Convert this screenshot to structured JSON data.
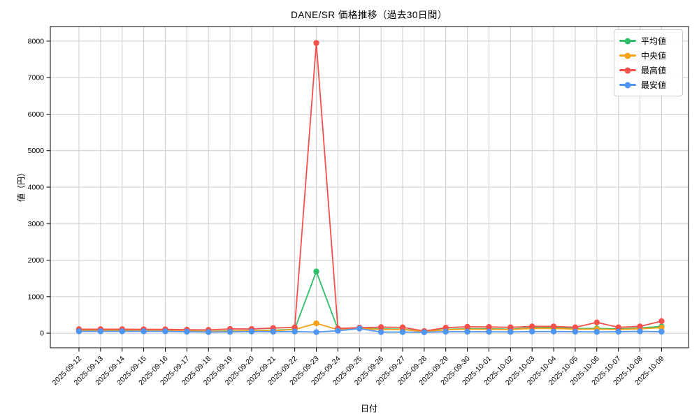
{
  "chart_data": {
    "type": "line",
    "title": "DANE/SR 価格推移（過去30日間）",
    "xlabel": "日付",
    "ylabel": "値（円）",
    "grid": true,
    "legend_position": "top-right",
    "ylim": [
      -400,
      8400
    ],
    "yticks": [
      0,
      1000,
      2000,
      3000,
      4000,
      5000,
      6000,
      7000,
      8000
    ],
    "categories": [
      "2025-09-12",
      "2025-09-13",
      "2025-09-14",
      "2025-09-15",
      "2025-09-16",
      "2025-09-17",
      "2025-09-18",
      "2025-09-19",
      "2025-09-20",
      "2025-09-21",
      "2025-09-22",
      "2025-09-23",
      "2025-09-24",
      "2025-09-25",
      "2025-09-26",
      "2025-09-27",
      "2025-09-28",
      "2025-09-29",
      "2025-09-30",
      "2025-10-01",
      "2025-10-02",
      "2025-10-03",
      "2025-10-04",
      "2025-10-05",
      "2025-10-06",
      "2025-10-07",
      "2025-10-08",
      "2025-10-09"
    ],
    "series": [
      {
        "name": "平均値",
        "color": "#2fbe69",
        "values": [
          80,
          80,
          80,
          75,
          75,
          65,
          55,
          60,
          70,
          80,
          110,
          1690,
          110,
          135,
          115,
          110,
          45,
          105,
          120,
          120,
          110,
          150,
          160,
          125,
          130,
          115,
          140,
          185
        ]
      },
      {
        "name": "中央値",
        "color": "#f7a219",
        "values": [
          75,
          75,
          75,
          70,
          70,
          60,
          50,
          55,
          65,
          70,
          100,
          270,
          95,
          130,
          100,
          100,
          40,
          95,
          110,
          105,
          100,
          130,
          130,
          110,
          110,
          100,
          120,
          150
        ]
      },
      {
        "name": "最高値",
        "color": "#f4514c",
        "values": [
          110,
          110,
          110,
          105,
          105,
          95,
          90,
          115,
          115,
          140,
          160,
          7950,
          130,
          150,
          165,
          160,
          60,
          150,
          175,
          170,
          160,
          185,
          185,
          160,
          295,
          160,
          185,
          330
        ]
      },
      {
        "name": "最安値",
        "color": "#4f96f2",
        "values": [
          50,
          50,
          50,
          50,
          50,
          40,
          30,
          35,
          45,
          40,
          45,
          30,
          65,
          125,
          30,
          30,
          25,
          40,
          40,
          40,
          35,
          45,
          45,
          40,
          35,
          40,
          50,
          40
        ]
      }
    ],
    "axis_color": "#000000",
    "grid_color": "#cccccc"
  }
}
